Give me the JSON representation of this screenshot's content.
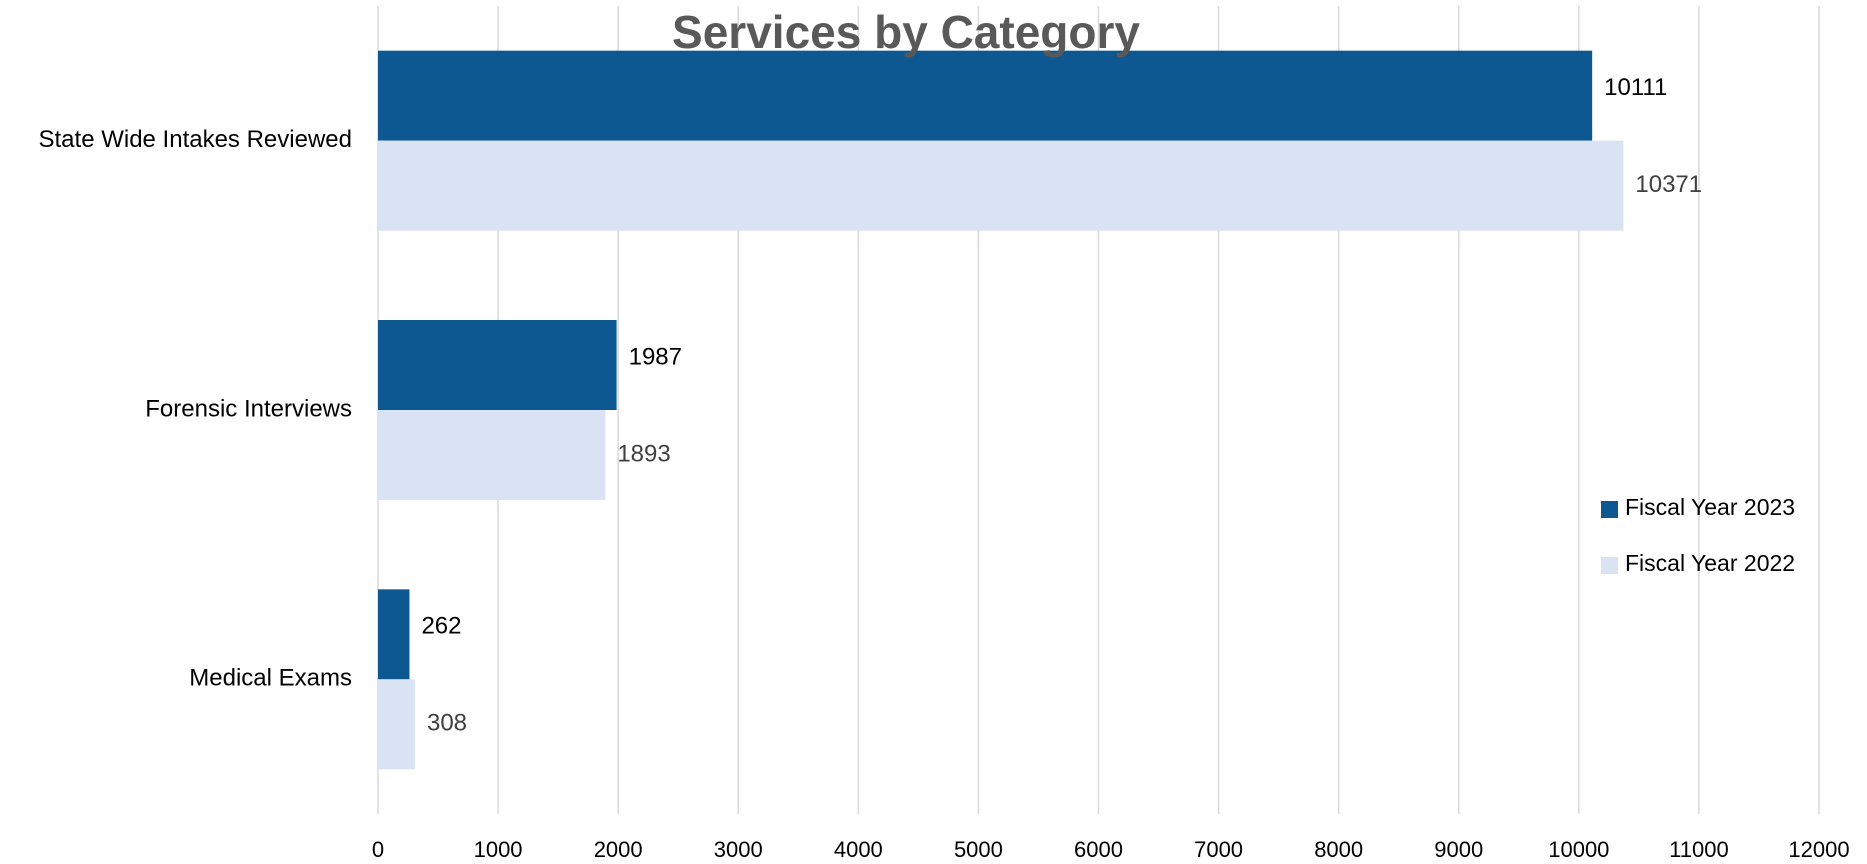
{
  "chart_data": {
    "type": "hbar",
    "title": "Services by Category",
    "categories": [
      "State Wide Intakes Reviewed",
      "Forensic Interviews",
      "Medical Exams"
    ],
    "series": [
      {
        "name": "Fiscal Year 2023",
        "color": "#0d5891",
        "values": [
          10111,
          1987,
          262
        ]
      },
      {
        "name": "Fiscal Year 2022",
        "color": "#dae3f3",
        "values": [
          10371,
          1893,
          308
        ]
      }
    ],
    "xlim": [
      0,
      12000
    ],
    "xticks": [
      0,
      1000,
      2000,
      3000,
      4000,
      5000,
      6000,
      7000,
      8000,
      9000,
      10000,
      11000,
      12000
    ],
    "grid": true,
    "legend": "right"
  }
}
